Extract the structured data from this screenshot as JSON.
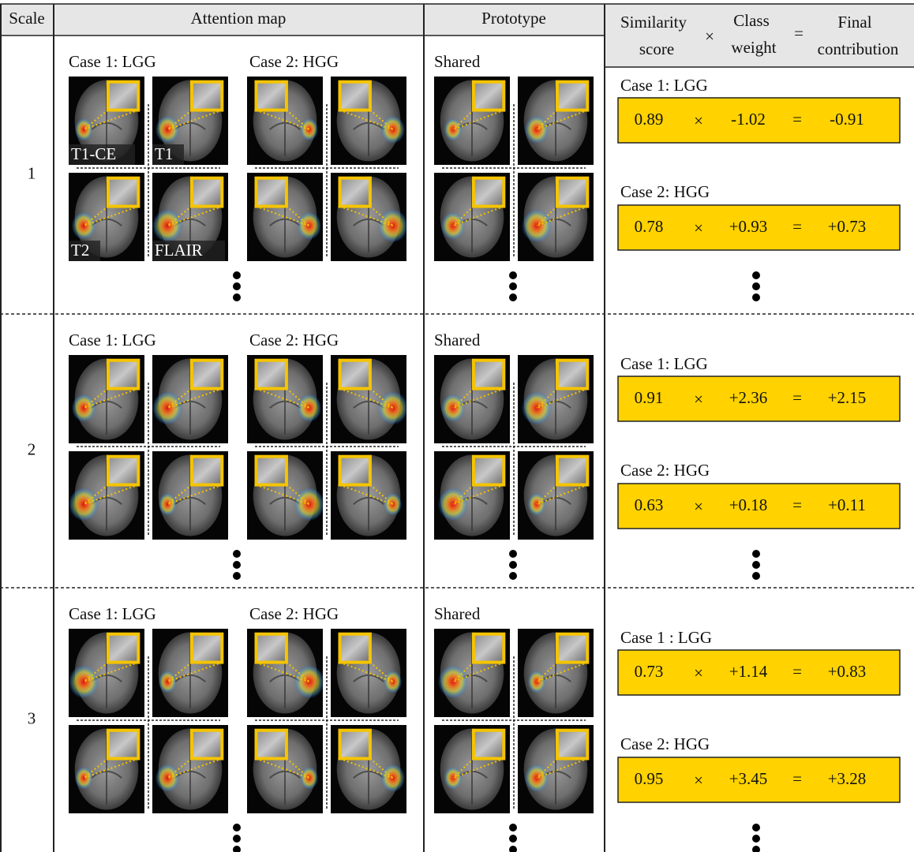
{
  "header": {
    "scale": "Scale",
    "attention": "Attention map",
    "prototype": "Prototype",
    "similarity": [
      "Similarity",
      "score"
    ],
    "class_weight": [
      "Class",
      "weight"
    ],
    "final": [
      "Final",
      "contribution"
    ]
  },
  "operators": {
    "times": "×",
    "equals": "="
  },
  "modalities": [
    "T1-CE",
    "T1",
    "T2",
    "FLAIR"
  ],
  "rows": [
    {
      "scale": "1",
      "case1": "Case 1: LGG",
      "case2": "Case 2: HGG",
      "shared": "Shared",
      "results": [
        {
          "label": "Case 1: LGG",
          "similarity": "0.89",
          "weight": "-1.02",
          "contribution": "-0.91"
        },
        {
          "label": "Case 2: HGG",
          "similarity": "0.78",
          "weight": "+0.93",
          "contribution": "+0.73"
        }
      ]
    },
    {
      "scale": "2",
      "case1": "Case 1: LGG",
      "case2": "Case 2: HGG",
      "shared": "Shared",
      "results": [
        {
          "label": "Case 1: LGG",
          "similarity": "0.91",
          "weight": "+2.36",
          "contribution": "+2.15"
        },
        {
          "label": "Case 2: HGG",
          "similarity": "0.63",
          "weight": "+0.18",
          "contribution": "+0.11"
        }
      ]
    },
    {
      "scale": "3",
      "case1": "Case 1: LGG",
      "case2": "Case 2: HGG",
      "shared": "Shared",
      "results": [
        {
          "label": "Case 1 : LGG",
          "similarity": "0.73",
          "weight": "+1.14",
          "contribution": "+0.83"
        },
        {
          "label": "Case 2: HGG",
          "similarity": "0.95",
          "weight": "+3.45",
          "contribution": "+3.28"
        }
      ]
    }
  ]
}
